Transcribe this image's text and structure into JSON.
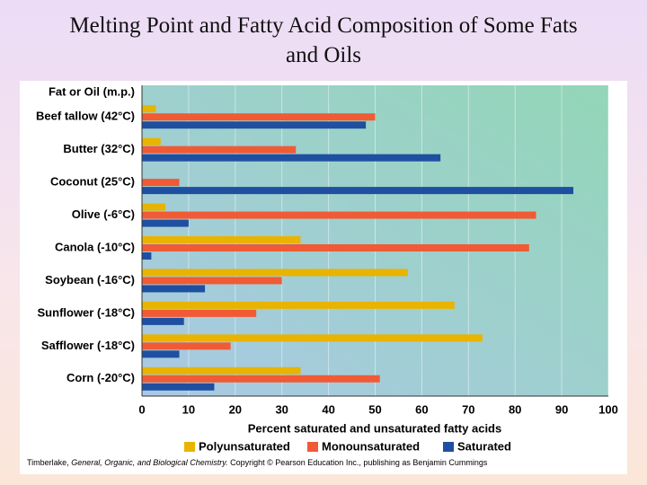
{
  "chart_data": {
    "type": "bar",
    "orientation": "horizontal",
    "title": "Melting Point and Fatty Acid Composition of Some Fats and Oils",
    "y_label": "Fat or Oil (m.p.)",
    "x_label": "Percent saturated and unsaturated fatty acids",
    "categories": [
      "Beef tallow (42°C)",
      "Butter (32°C)",
      "Coconut (25°C)",
      "Olive (-6°C)",
      "Canola (-10°C)",
      "Soybean (-16°C)",
      "Sunflower (-18°C)",
      "Safflower (-18°C)",
      "Corn (-20°C)"
    ],
    "series": [
      {
        "name": "Polyunsaturated",
        "color": "#e8b400",
        "values": [
          3,
          4,
          null,
          5,
          34,
          57,
          67,
          73,
          34
        ]
      },
      {
        "name": "Monounsaturated",
        "color": "#f05a35",
        "values": [
          50,
          33,
          8,
          84.5,
          83,
          30,
          24.5,
          19,
          51
        ]
      },
      {
        "name": "Saturated",
        "color": "#1f4fa0",
        "values": [
          48,
          64,
          92.5,
          10,
          2,
          13.5,
          9,
          8,
          15.5
        ]
      }
    ],
    "xlim": [
      0,
      100
    ],
    "xticks": [
      0,
      10,
      20,
      30,
      40,
      50,
      60,
      70,
      80,
      90,
      100
    ],
    "grid": true,
    "credit": [
      "Timberlake, ",
      "General, Organic, and Biological Chemistry.",
      " Copyright © Pearson Education Inc., publishing as Benjamin Cummings"
    ]
  }
}
